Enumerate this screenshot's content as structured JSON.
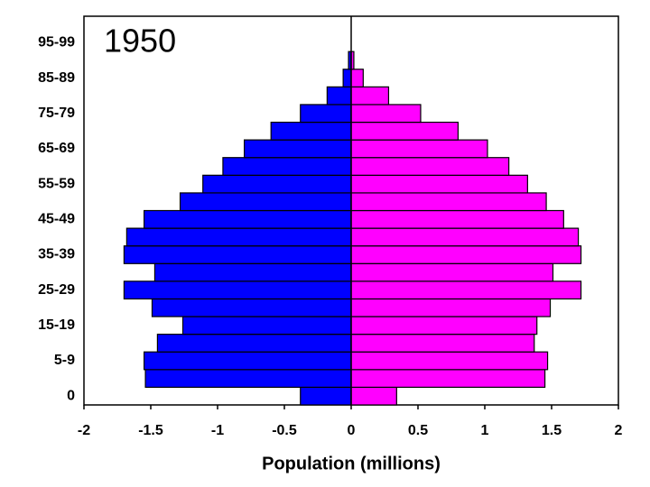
{
  "chart_data": {
    "type": "bar",
    "annotation": "1950",
    "xlabel": "Population (millions)",
    "categories": [
      "0",
      null,
      "5-9",
      null,
      "15-19",
      null,
      "25-29",
      null,
      "35-39",
      null,
      "45-49",
      null,
      "55-59",
      null,
      "65-69",
      null,
      "75-79",
      null,
      "85-89",
      null,
      "95-99"
    ],
    "series": [
      {
        "color": "#0000ff",
        "values": [
          -0.38,
          -1.54,
          -1.55,
          -1.45,
          -1.26,
          -1.49,
          -1.7,
          -1.47,
          -1.7,
          -1.68,
          -1.55,
          -1.28,
          -1.11,
          -0.96,
          -0.8,
          -0.6,
          -0.38,
          -0.18,
          -0.06,
          -0.02,
          0
        ]
      },
      {
        "color": "#ff00ff",
        "values": [
          0.34,
          1.45,
          1.47,
          1.37,
          1.39,
          1.49,
          1.72,
          1.51,
          1.72,
          1.7,
          1.59,
          1.46,
          1.32,
          1.18,
          1.02,
          0.8,
          0.52,
          0.28,
          0.09,
          0.02,
          0
        ]
      }
    ],
    "xlim": [
      -2,
      2
    ],
    "xticks": [
      -2,
      -1.5,
      -1,
      -0.5,
      0,
      0.5,
      1,
      1.5,
      2
    ],
    "grid": false
  }
}
